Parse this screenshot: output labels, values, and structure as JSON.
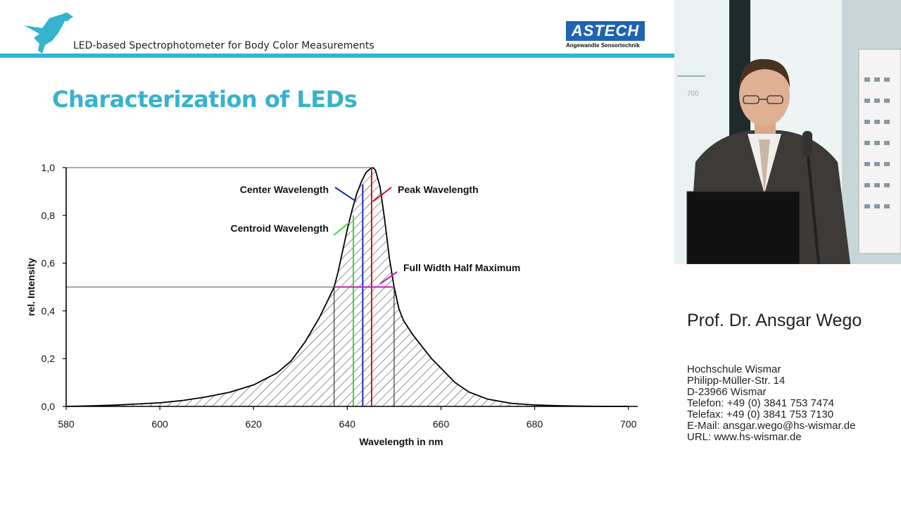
{
  "header": {
    "title": "LED-based Spectrophotometer for Body Color Measurements",
    "logo_text": "ASTECH",
    "logo_subtitle": "Angewandte Sensortechnik"
  },
  "slide_title": "Characterization of LEDs",
  "chart_data": {
    "type": "line",
    "title": "",
    "xlabel": "Wavelength in nm",
    "ylabel": "rel. Intensity",
    "xlim": [
      580,
      702
    ],
    "ylim": [
      0,
      1.0
    ],
    "x_ticks": [
      580,
      600,
      620,
      640,
      660,
      680,
      700
    ],
    "x_tick_labels": [
      "580",
      "600",
      "620",
      "640",
      "660",
      "680",
      "700"
    ],
    "y_ticks": [
      0,
      0.2,
      0.4,
      0.6,
      0.8,
      1.0
    ],
    "y_tick_labels": [
      "0,0",
      "0,2",
      "0,4",
      "0,6",
      "0,8",
      "1,0"
    ],
    "series": [
      {
        "x": [
          580,
          585,
          590,
          595,
          600,
          605,
          610,
          615,
          620,
          625,
          628,
          631,
          634,
          636,
          637.2,
          638,
          639,
          640,
          641,
          642,
          643,
          644,
          645,
          645.5,
          646,
          647,
          648,
          649,
          650,
          651,
          652,
          654,
          656,
          658,
          660,
          663,
          666,
          670,
          675,
          680,
          685,
          690,
          695,
          700
        ],
        "y": [
          0,
          0.002,
          0.005,
          0.01,
          0.015,
          0.025,
          0.04,
          0.06,
          0.09,
          0.14,
          0.19,
          0.27,
          0.37,
          0.45,
          0.5,
          0.56,
          0.65,
          0.74,
          0.82,
          0.89,
          0.94,
          0.98,
          0.997,
          1.0,
          0.99,
          0.92,
          0.78,
          0.62,
          0.5,
          0.41,
          0.36,
          0.3,
          0.25,
          0.2,
          0.16,
          0.1,
          0.06,
          0.03,
          0.013,
          0.006,
          0.003,
          0.001,
          0,
          0
        ]
      }
    ],
    "markers": {
      "centroid_wavelength": 641.3,
      "center_wavelength": 643.3,
      "peak_wavelength": 645.2,
      "fwhm_left": 637.2,
      "fwhm_right": 650,
      "half_max": 0.5
    },
    "annotations": [
      {
        "text": "Center Wavelength",
        "color": "#1f2fb0"
      },
      {
        "text": "Peak Wavelength",
        "color": "#d01020"
      },
      {
        "text": "Centroid Wavelength",
        "color": "#38d838"
      },
      {
        "text": "Full Width Half Maximum",
        "color": "#c020c0"
      }
    ],
    "grid": false
  },
  "speaker": {
    "name": "Prof. Dr. Ansgar Wego",
    "address_lines": [
      "Hochschule Wismar",
      "Philipp-Müller-Str. 14",
      "D-23966 Wismar",
      "Telefon: +49 (0) 3841 753  7474",
      "Telefax: +49 (0) 3841  753 7130",
      "E-Mail: ansgar.wego@hs-wismar.de",
      "URL: www.hs-wismar.de"
    ]
  },
  "colors": {
    "accent": "#36b3cd",
    "header_bar": "#2fb7cf",
    "logo_blue": "#1f63b3"
  },
  "video_wall_label": "700"
}
